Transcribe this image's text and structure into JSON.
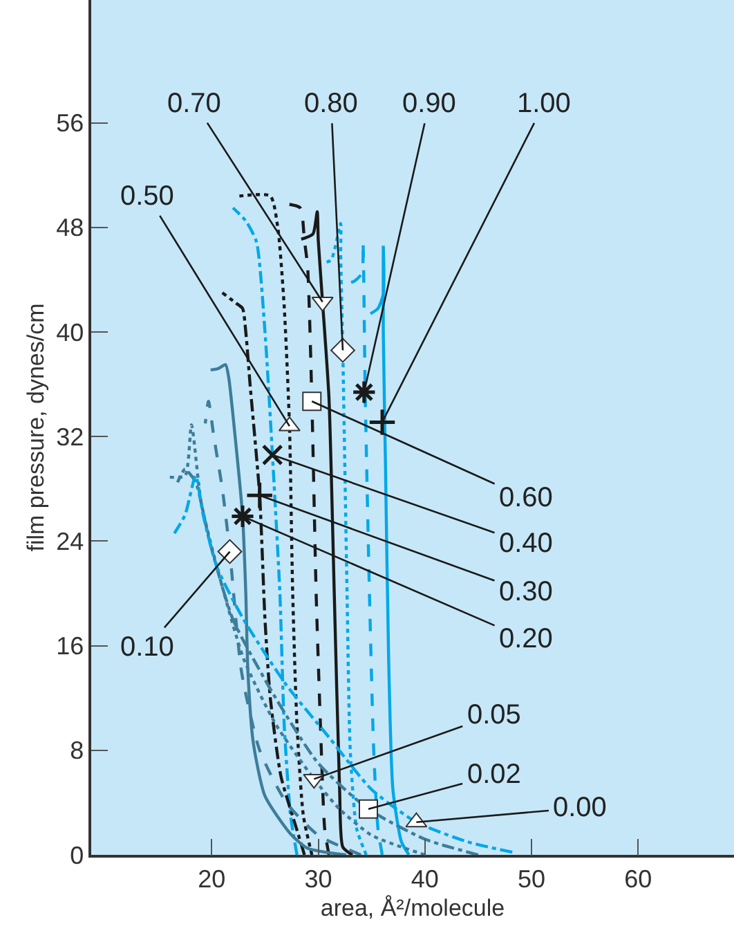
{
  "chart_data": {
    "type": "line",
    "xlabel": "area, Å²/molecule",
    "ylabel": "film pressure, dynes/cm",
    "xlim": [
      8.7,
      69
    ],
    "ylim": [
      0,
      65.4
    ],
    "xticks": [
      20,
      30,
      40,
      50,
      60
    ],
    "yticks": [
      0,
      8,
      16,
      24,
      32,
      40,
      48,
      56
    ],
    "series": [
      {
        "color": "#00a8e8",
        "line_style": "solid",
        "x": [
          38.5,
          37.8,
          37.0,
          36.6,
          36.3,
          36.1,
          36.1,
          36.1,
          35.6,
          34.9
        ],
        "values": [
          0,
          1,
          5,
          15,
          30,
          40,
          46.6,
          42.9,
          41.8,
          41.4
        ]
      },
      {
        "color": "#00a8e8",
        "line_style": "dashed",
        "x": [
          36.0,
          35.6,
          35.2,
          34.8,
          34.4,
          34.2,
          34.1,
          33.4,
          32.7
        ],
        "values": [
          0,
          2,
          8,
          20,
          35.4,
          46.9,
          44.5,
          43.9,
          43.7
        ]
      },
      {
        "color": "#00a8e8",
        "line_style": "dotted",
        "x": [
          34.5,
          33.6,
          33.0,
          32.7,
          32.3,
          32.1,
          32.1,
          31.2,
          30.4
        ],
        "values": [
          0,
          2,
          8,
          20,
          38.6,
          46,
          48.3,
          45.5,
          45.3
        ]
      },
      {
        "color": "#1a1a1a",
        "line_style": "solid",
        "x": [
          33.2,
          32.3,
          32.0,
          31.5,
          31.0,
          30.4,
          30.0,
          29.9,
          29.5,
          28.4
        ],
        "values": [
          0,
          0.6,
          5,
          20,
          35,
          42.3,
          47,
          49.2,
          47.5,
          47.1
        ]
      },
      {
        "color": "#1a1a1a",
        "line_style": "dashed",
        "x": [
          31.0,
          30.6,
          30.2,
          29.8,
          29.4,
          29.0,
          28.7,
          28.3,
          27.0
        ],
        "values": [
          0,
          2,
          10,
          20,
          34.7,
          45,
          47,
          49.5,
          49.8
        ]
      },
      {
        "color": "#1a1a1a",
        "line_style": "dotted",
        "x": [
          29.4,
          28.6,
          28.0,
          27.6,
          27.3,
          26.8,
          26.2,
          25.5,
          22.6
        ],
        "values": [
          0,
          3,
          10,
          20,
          32.8,
          42,
          48,
          50.4,
          50.4
        ]
      },
      {
        "color": "#00a8e8",
        "line_style": "dashdot",
        "x": [
          28.0,
          27.4,
          26.8,
          26.4,
          25.7,
          25.0,
          24.2,
          23.2,
          22.0
        ],
        "values": [
          0,
          3,
          10,
          20,
          30.6,
          40,
          46.9,
          48.5,
          49.5
        ]
      },
      {
        "color": "#1a1a1a",
        "line_style": "dashdot",
        "x": [
          28.7,
          28.0,
          26.5,
          25.5,
          25.0,
          24.5,
          23.6,
          23.2,
          22.9,
          22.3,
          21.0
        ],
        "values": [
          0,
          1.9,
          6,
          12,
          18,
          27.5,
          36,
          40,
          41.8,
          42.2,
          43.0
        ]
      },
      {
        "color": "#3d7d99",
        "line_style": "solid",
        "x": [
          32.6,
          29.0,
          27.4,
          25.0,
          23.9,
          23.4,
          23.2,
          22.9,
          22.2,
          21.6,
          21.3,
          20.6,
          19.9
        ],
        "values": [
          0,
          0.5,
          1.6,
          4.5,
          8.6,
          14,
          20,
          25.9,
          32,
          36.5,
          37.5,
          37.2,
          37.1
        ]
      },
      {
        "color": "#3d7d99",
        "line_style": "dashed",
        "x": [
          34.0,
          30.0,
          27.0,
          24.5,
          22.8,
          21.7,
          21.0,
          20.2,
          19.7,
          19.4
        ],
        "values": [
          0,
          1.5,
          4,
          8,
          14,
          23.2,
          28,
          32,
          34.7,
          33.0
        ]
      },
      {
        "color": "#3d7d99",
        "line_style": "dotted",
        "x": [
          40.0,
          35.0,
          32.0,
          29.6,
          26.0,
          23.0,
          20.5,
          19.0,
          18.1,
          17.5,
          16.0
        ],
        "values": [
          0,
          1.5,
          3.5,
          5.8,
          10,
          15,
          22,
          27,
          32.9,
          29,
          28.9
        ]
      },
      {
        "color": "#3d7d99",
        "line_style": "dashdot",
        "x": [
          45.0,
          40.0,
          34.7,
          30.0,
          26.0,
          22.0,
          19.8,
          18.5,
          17.5,
          16.8
        ],
        "values": [
          0,
          1.2,
          3.5,
          7,
          12,
          18,
          24,
          28.5,
          29.5,
          28.5
        ]
      },
      {
        "color": "#00a8e8",
        "line_style": "dashdot",
        "x": [
          48.2,
          44.0,
          39.2,
          35.0,
          31.0,
          27.0,
          23.0,
          20.5,
          19.2,
          18.5,
          17.5,
          16.5
        ],
        "values": [
          0.2,
          1,
          2.5,
          5,
          9,
          13,
          18,
          22,
          26,
          29,
          26,
          24.6
        ]
      },
      {
        "type": "scatter",
        "marker": "triangle-down",
        "color": "#ffffff",
        "x": [
          30.4
        ],
        "values": [
          42.3
        ]
      },
      {
        "type": "scatter",
        "marker": "diamond",
        "color": "#ffffff",
        "x": [
          32.3
        ],
        "values": [
          38.6
        ]
      },
      {
        "type": "scatter",
        "marker": "cross",
        "color": "#1a1a1a",
        "x": [
          34.3
        ],
        "values": [
          35.4
        ]
      },
      {
        "type": "scatter",
        "marker": "plus",
        "color": "#1a1a1a",
        "x": [
          36.0
        ],
        "values": [
          33.1
        ]
      },
      {
        "type": "scatter",
        "marker": "triangle",
        "color": "#ffffff",
        "x": [
          27.3
        ],
        "values": [
          32.8
        ]
      },
      {
        "type": "scatter",
        "marker": "square",
        "color": "#ffffff",
        "x": [
          29.4
        ],
        "values": [
          34.7
        ]
      },
      {
        "type": "scatter",
        "marker": "x",
        "color": "#1a1a1a",
        "x": [
          25.7
        ],
        "values": [
          30.6
        ]
      },
      {
        "type": "scatter",
        "marker": "plus",
        "color": "#1a1a1a",
        "x": [
          24.5
        ],
        "values": [
          27.5
        ]
      },
      {
        "type": "scatter",
        "marker": "cross",
        "color": "#1a1a1a",
        "x": [
          22.9
        ],
        "values": [
          25.9
        ]
      },
      {
        "type": "scatter",
        "marker": "diamond",
        "color": "#ffffff",
        "x": [
          21.7
        ],
        "values": [
          23.2
        ]
      },
      {
        "type": "scatter",
        "marker": "triangle-down",
        "color": "#ffffff",
        "x": [
          29.6
        ],
        "values": [
          5.8
        ]
      },
      {
        "type": "scatter",
        "marker": "square",
        "color": "#ffffff",
        "x": [
          34.7
        ],
        "values": [
          3.5
        ]
      },
      {
        "type": "scatter",
        "marker": "triangle",
        "color": "#ffffff",
        "x": [
          39.2
        ],
        "values": [
          2.5
        ]
      }
    ],
    "annotations": [
      {
        "text": "0.70",
        "x": 30.4,
        "y": 42.3
      },
      {
        "text": "0.80",
        "x": 32.3,
        "y": 38.6
      },
      {
        "text": "0.90",
        "x": 34.3,
        "y": 35.4
      },
      {
        "text": "1.00",
        "x": 36.0,
        "y": 33.1
      },
      {
        "text": "0.50",
        "x": 27.3,
        "y": 32.8
      },
      {
        "text": "0.60",
        "x": 29.4,
        "y": 34.7
      },
      {
        "text": "0.40",
        "x": 25.7,
        "y": 30.6
      },
      {
        "text": "0.30",
        "x": 24.5,
        "y": 27.5
      },
      {
        "text": "0.20",
        "x": 22.9,
        "y": 25.9
      },
      {
        "text": "0.10",
        "x": 21.7,
        "y": 23.2
      },
      {
        "text": "0.05",
        "x": 29.6,
        "y": 5.8
      },
      {
        "text": "0.02",
        "x": 34.7,
        "y": 3.5
      },
      {
        "text": "0.00",
        "x": 39.2,
        "y": 2.5
      }
    ]
  }
}
